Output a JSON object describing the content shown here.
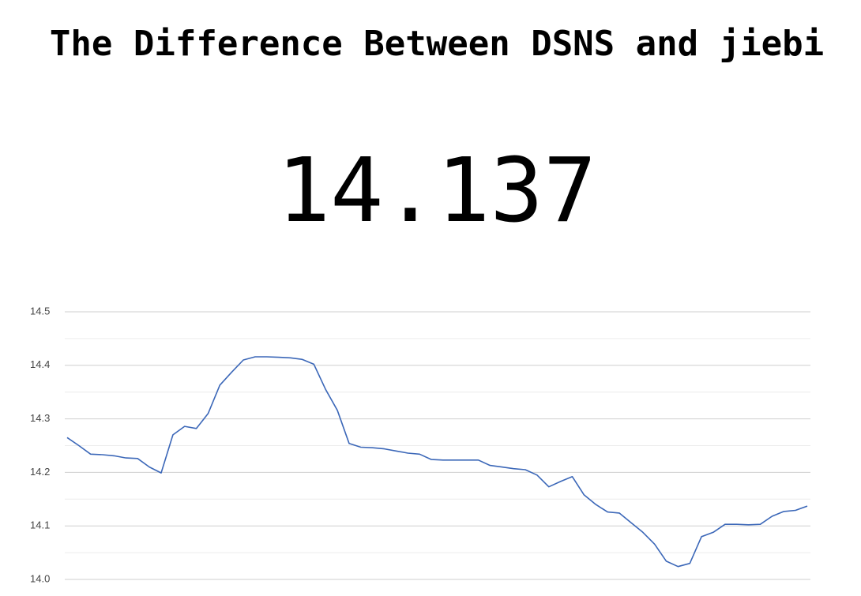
{
  "title": "The Difference Between DSNS and jiebi",
  "headline": "14.137",
  "chart_data": {
    "type": "line",
    "series": [
      {
        "color": "#3b67b8",
        "values": [
          14.265,
          14.25,
          14.234,
          14.233,
          14.231,
          14.227,
          14.226,
          14.21,
          14.199,
          14.27,
          14.286,
          14.282,
          14.31,
          14.363,
          14.387,
          14.41,
          14.416,
          14.416,
          14.415,
          14.414,
          14.411,
          14.402,
          14.355,
          14.316,
          14.254,
          14.247,
          14.246,
          14.244,
          14.24,
          14.236,
          14.234,
          14.224,
          14.223,
          14.223,
          14.223,
          14.223,
          14.213,
          14.21,
          14.207,
          14.205,
          14.195,
          14.173,
          14.183,
          14.192,
          14.158,
          14.14,
          14.126,
          14.124,
          14.106,
          14.088,
          14.066,
          14.034,
          14.024,
          14.03,
          14.08,
          14.088,
          14.103,
          14.103,
          14.102,
          14.103,
          14.118,
          14.127,
          14.129,
          14.137
        ]
      }
    ],
    "ylim": [
      14.0,
      14.5
    ],
    "yticks": [
      {
        "value": 14,
        "label": "14.0"
      },
      14.1,
      14.2,
      14.3,
      14.4,
      14.5
    ],
    "minor_yticks": [
      14.05,
      14.15,
      14.25,
      14.35,
      14.45
    ],
    "grid": true
  }
}
